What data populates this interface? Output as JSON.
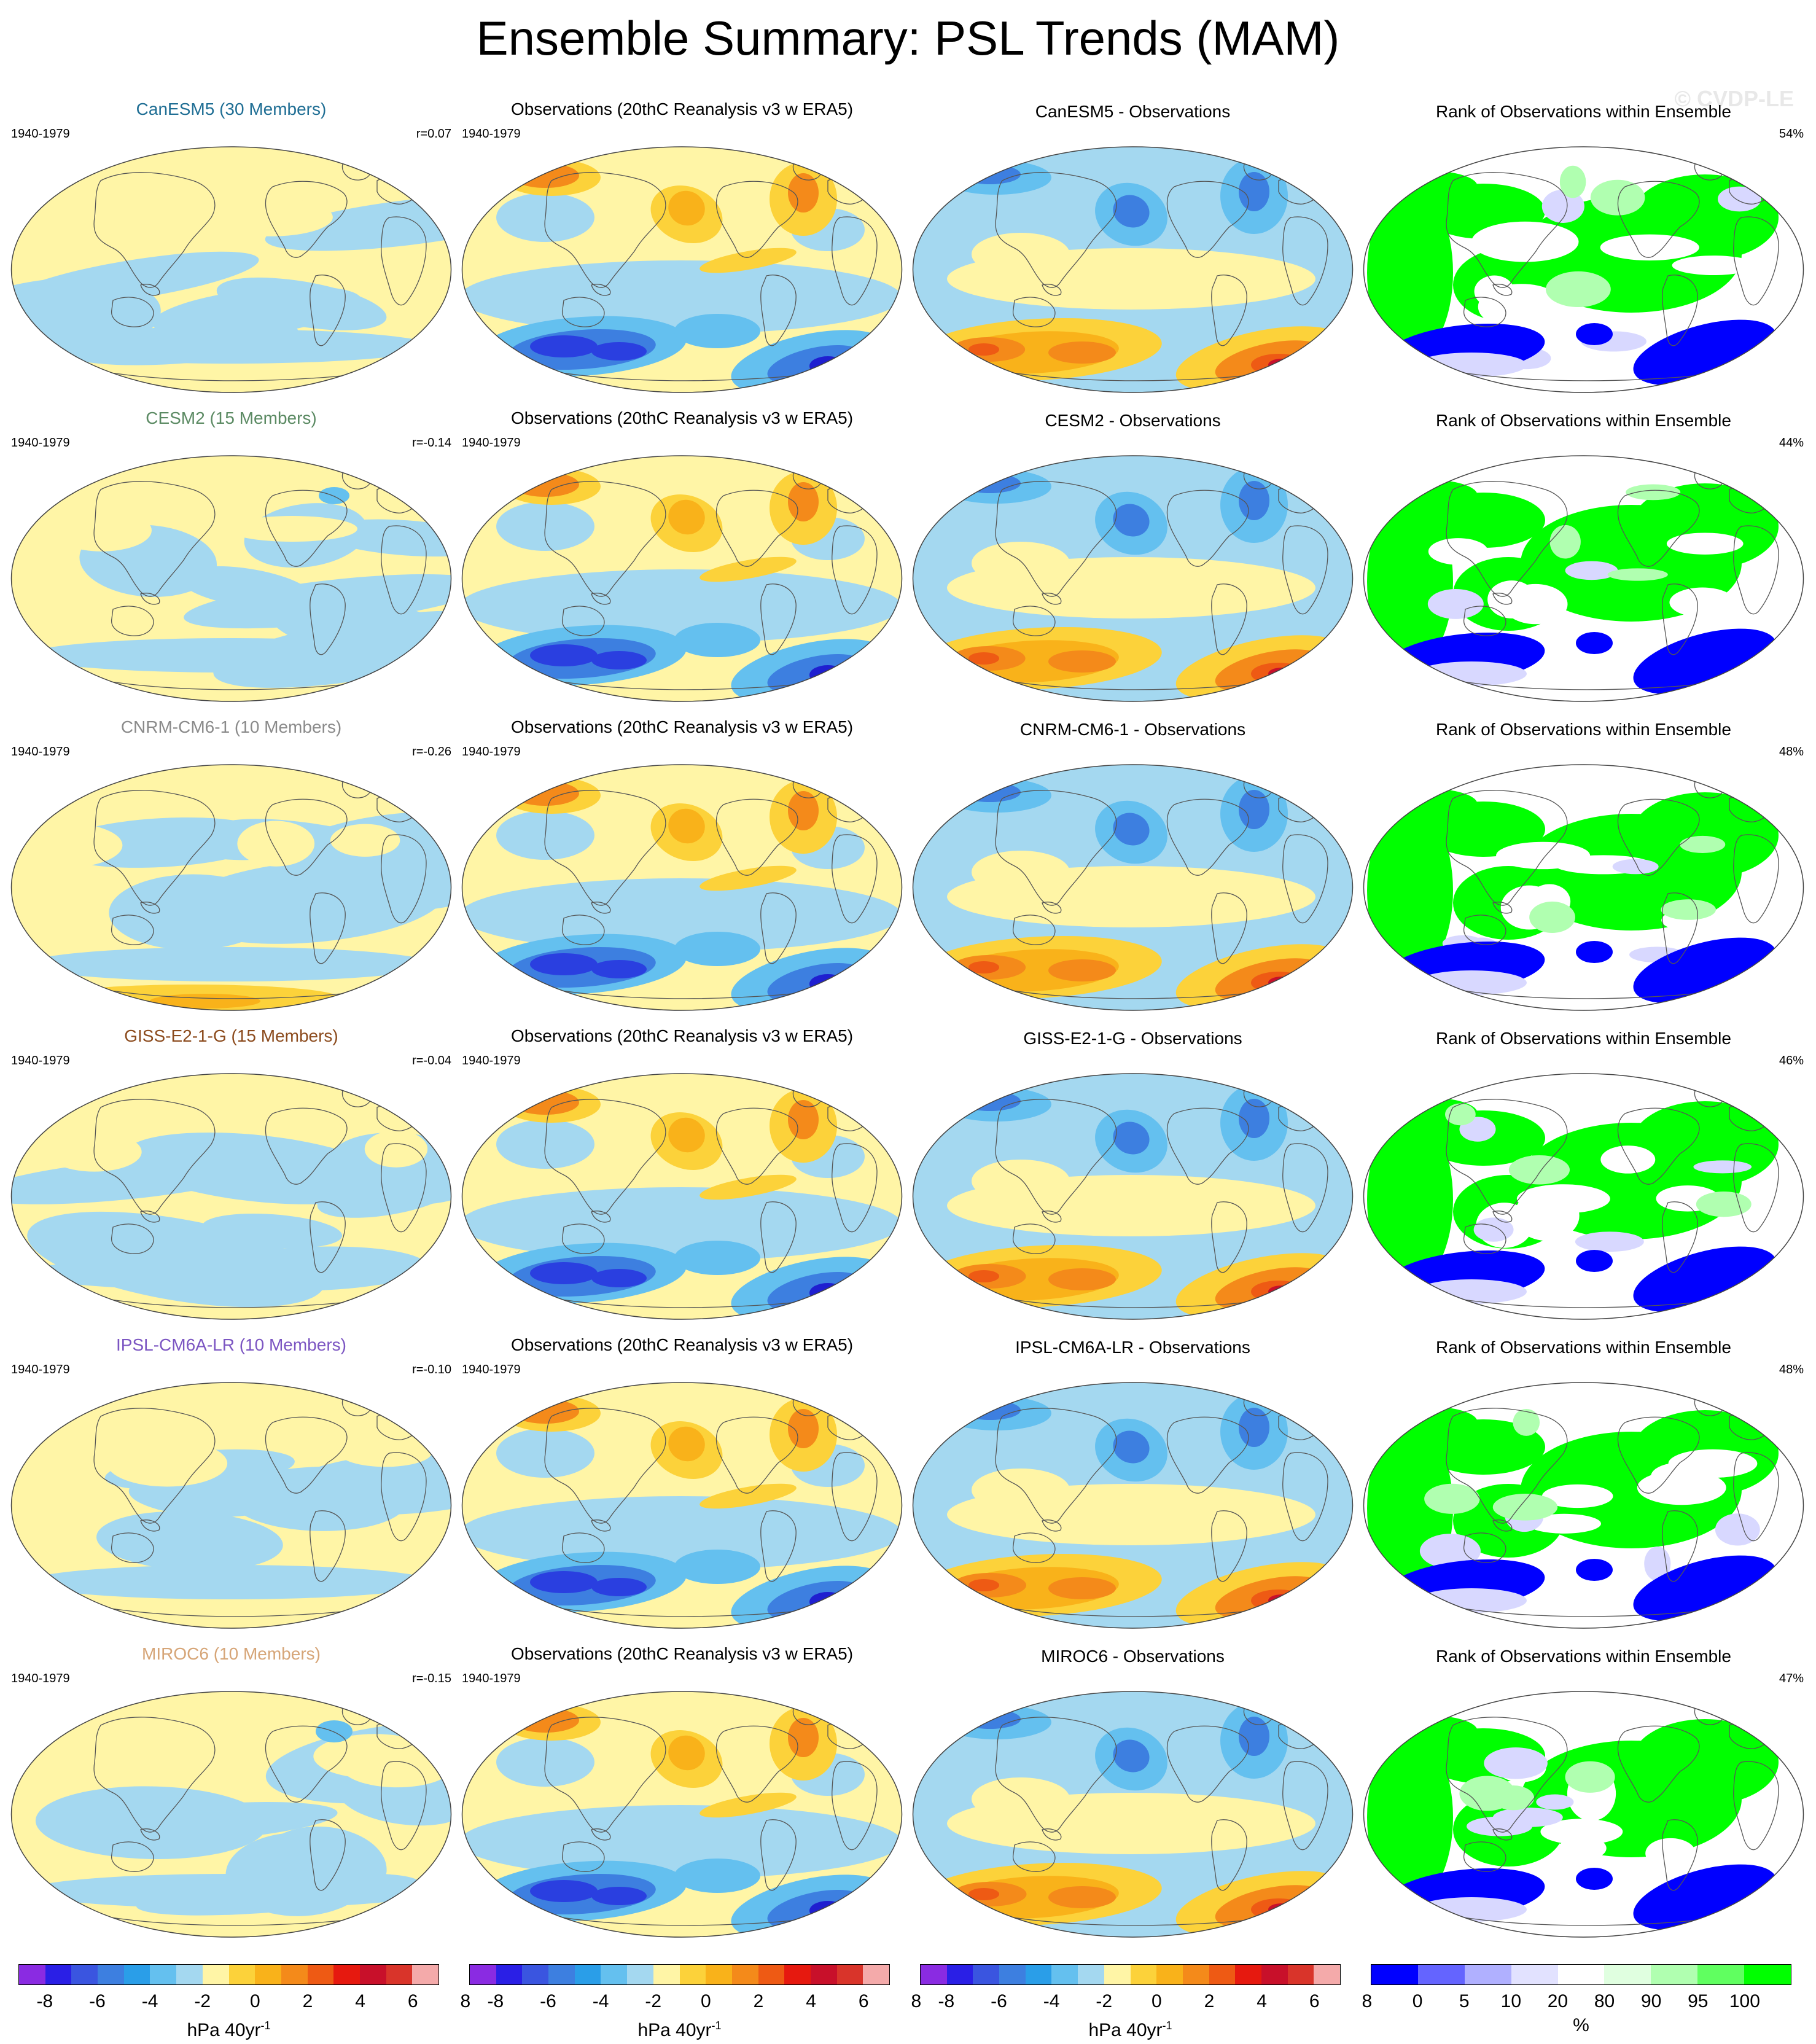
{
  "page": {
    "title": "Ensemble Summary: PSL Trends (MAM)",
    "watermark": "© CVDP-LE"
  },
  "panel_titles": {
    "observations": "Observations (20thC Reanalysis v3 w ERA5)",
    "rank": "Rank of Observations within Ensemble"
  },
  "rows": [
    {
      "model_title": "CanESM5 (30 Members)",
      "model_color": "#1f6e94",
      "period": "1940-1979",
      "r_label": "r=0.07",
      "obs_period": "1940-1979",
      "diff_title": "CanESM5 - Observations",
      "rank_pct": "54%"
    },
    {
      "model_title": "CESM2 (15 Members)",
      "model_color": "#5b8a63",
      "period": "1940-1979",
      "r_label": "r=-0.14",
      "obs_period": "1940-1979",
      "diff_title": "CESM2 - Observations",
      "rank_pct": "44%"
    },
    {
      "model_title": "CNRM-CM6-1 (10 Members)",
      "model_color": "#8a8a8a",
      "period": "1940-1979",
      "r_label": "r=-0.26",
      "obs_period": "1940-1979",
      "diff_title": "CNRM-CM6-1 - Observations",
      "rank_pct": "48%"
    },
    {
      "model_title": "GISS-E2-1-G (15 Members)",
      "model_color": "#8b4a1c",
      "period": "1940-1979",
      "r_label": "r=-0.04",
      "obs_period": "1940-1979",
      "diff_title": "GISS-E2-1-G - Observations",
      "rank_pct": "46%"
    },
    {
      "model_title": "IPSL-CM6A-LR (10 Members)",
      "model_color": "#7b55c2",
      "period": "1940-1979",
      "r_label": "r=-0.10",
      "obs_period": "1940-1979",
      "diff_title": "IPSL-CM6A-LR - Observations",
      "rank_pct": "48%"
    },
    {
      "model_title": "MIROC6 (10 Members)",
      "model_color": "#d6a577",
      "period": "1940-1979",
      "r_label": "r=-0.15",
      "obs_period": "1940-1979",
      "diff_title": "MIROC6 - Observations",
      "rank_pct": "47%"
    }
  ],
  "colorbars": {
    "trend": {
      "colors": [
        "#8a2be2",
        "#2a1fe6",
        "#3a55e0",
        "#3d7fe0",
        "#2a9ee8",
        "#64c0ef",
        "#a4d8f0",
        "#fff5a6",
        "#fcd23a",
        "#f9b21a",
        "#f48a1a",
        "#ee5a14",
        "#e6190f",
        "#c8102a",
        "#d9342a",
        "#f4aaaa"
      ],
      "ticks": [
        "-8",
        "-6",
        "-4",
        "-2",
        "0",
        "2",
        "4",
        "6",
        "8"
      ],
      "unit": "hPa 40yr",
      "unit_exp": "-1"
    },
    "rank": {
      "colors": [
        "#0000ff",
        "#6464ff",
        "#b0b0ff",
        "#e2e2ff",
        "#ffffff",
        "#e0ffe0",
        "#b0ffb0",
        "#60ff60",
        "#00ff00"
      ],
      "ticks": [
        "0",
        "5",
        "10",
        "20",
        "80",
        "90",
        "95",
        "100"
      ],
      "unit": "%"
    }
  }
}
